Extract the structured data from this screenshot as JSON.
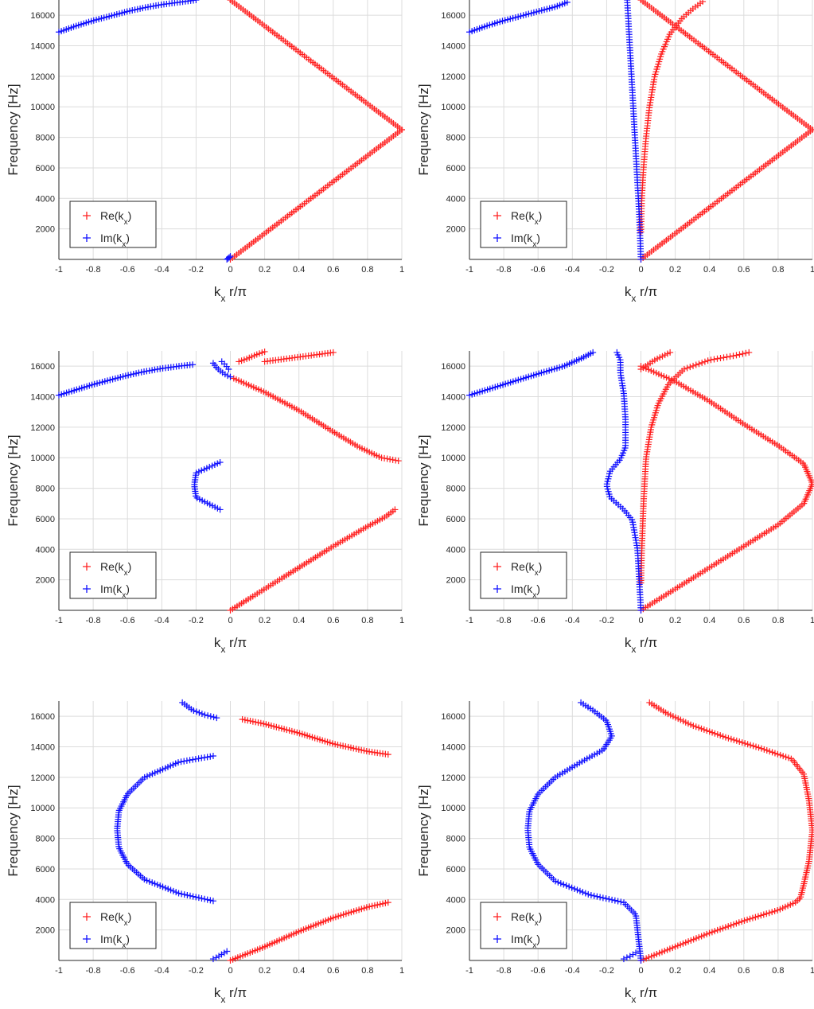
{
  "chart_data": [
    {
      "type": "scatter",
      "panel": "top-left",
      "xlabel": "k_x r/π",
      "ylabel": "Frequency [Hz]",
      "xlim": [
        -1,
        1
      ],
      "ylim": [
        0,
        17000
      ],
      "xticks": [
        "-1",
        "-0.8",
        "-0.6",
        "-0.4",
        "-0.2",
        "0",
        "0.2",
        "0.4",
        "0.6",
        "0.8",
        "1"
      ],
      "yticks": [
        "2000",
        "4000",
        "6000",
        "8000",
        "10000",
        "12000",
        "14000",
        "16000"
      ],
      "grid": true,
      "legend": "bottom-left",
      "marker": "+",
      "series": [
        {
          "name": "Re(k_x)",
          "color": "#ff2020",
          "branches": [
            {
              "x": [
                0.0,
                0.5,
                1.0
              ],
              "y": [
                0,
                4250,
                8500
              ]
            },
            {
              "x": [
                1.0,
                0.5,
                0.0
              ],
              "y": [
                8500,
                12750,
                17000
              ]
            }
          ]
        },
        {
          "name": "Im(k_x)",
          "color": "#1010ff",
          "branches": [
            {
              "x": [
                -1.0,
                -0.9,
                -0.8,
                -0.7,
                -0.6,
                -0.5,
                -0.4,
                -0.3,
                -0.2
              ],
              "y": [
                14900,
                15300,
                15650,
                15950,
                16250,
                16500,
                16700,
                16850,
                17000
              ]
            },
            {
              "x": [
                -0.02,
                0.0
              ],
              "y": [
                0,
                200
              ]
            }
          ]
        }
      ]
    },
    {
      "type": "scatter",
      "panel": "top-right",
      "xlabel": "k_x r/π",
      "ylabel": "Frequency [Hz]",
      "xlim": [
        -1,
        1
      ],
      "ylim": [
        0,
        17000
      ],
      "xticks": [
        "-1",
        "-0.8",
        "-0.6",
        "-0.4",
        "-0.2",
        "0",
        "0.2",
        "0.4",
        "0.6",
        "0.8",
        "1"
      ],
      "yticks": [
        "2000",
        "4000",
        "6000",
        "8000",
        "10000",
        "12000",
        "14000",
        "16000"
      ],
      "grid": true,
      "legend": "bottom-left",
      "marker": "+",
      "series": [
        {
          "name": "Re(k_x)",
          "color": "#ff2020",
          "branches": [
            {
              "x": [
                0.0,
                0.5,
                1.0
              ],
              "y": [
                0,
                4250,
                8500
              ]
            },
            {
              "x": [
                1.0,
                0.5,
                0.0
              ],
              "y": [
                8500,
                12750,
                17000
              ]
            },
            {
              "x": [
                0.0,
                0.005,
                0.015,
                0.03,
                0.05,
                0.08,
                0.12,
                0.17,
                0.24,
                0.3,
                0.36
              ],
              "y": [
                1800,
                4000,
                6000,
                8000,
                10000,
                12000,
                13500,
                14800,
                15800,
                16400,
                16900
              ]
            }
          ]
        },
        {
          "name": "Im(k_x)",
          "color": "#1010ff",
          "branches": [
            {
              "x": [
                -1.0,
                -0.9,
                -0.8,
                -0.7,
                -0.6,
                -0.5,
                -0.43
              ],
              "y": [
                14900,
                15300,
                15650,
                15950,
                16250,
                16550,
                16850
              ]
            },
            {
              "x": [
                -0.08,
                -0.07,
                -0.06,
                -0.05,
                -0.04,
                -0.03,
                -0.02,
                -0.01,
                0.0
              ],
              "y": [
                17000,
                15000,
                13000,
                11000,
                9000,
                7000,
                5000,
                3000,
                0
              ]
            }
          ]
        }
      ]
    },
    {
      "type": "scatter",
      "panel": "middle-left",
      "xlabel": "k_x r/π",
      "ylabel": "Frequency [Hz]",
      "xlim": [
        -1,
        1
      ],
      "ylim": [
        0,
        17000
      ],
      "xticks": [
        "-1",
        "-0.8",
        "-0.6",
        "-0.4",
        "-0.2",
        "0",
        "0.2",
        "0.4",
        "0.6",
        "0.8",
        "1"
      ],
      "yticks": [
        "2000",
        "4000",
        "6000",
        "8000",
        "10000",
        "12000",
        "14000",
        "16000"
      ],
      "grid": true,
      "legend": "bottom-left",
      "marker": "+",
      "series": [
        {
          "name": "Re(k_x)",
          "color": "#ff2020",
          "branches": [
            {
              "x": [
                0.0,
                0.2,
                0.4,
                0.6,
                0.8,
                0.9,
                0.96
              ],
              "y": [
                0,
                1400,
                2800,
                4200,
                5500,
                6100,
                6600
              ]
            },
            {
              "x": [
                0.02,
                0.2,
                0.4,
                0.6,
                0.75,
                0.88,
                0.98
              ],
              "y": [
                15200,
                14300,
                13100,
                11700,
                10700,
                10000,
                9800
              ]
            },
            {
              "x": [
                0.05,
                0.1,
                0.15,
                0.2
              ],
              "y": [
                16300,
                16500,
                16750,
                16950
              ]
            },
            {
              "x": [
                0.2,
                0.3,
                0.4,
                0.5,
                0.6
              ],
              "y": [
                16300,
                16450,
                16600,
                16750,
                16900
              ]
            }
          ]
        },
        {
          "name": "Im(k_x)",
          "color": "#1010ff",
          "branches": [
            {
              "x": [
                -1.0,
                -0.8,
                -0.6,
                -0.5,
                -0.4,
                -0.3,
                -0.22
              ],
              "y": [
                14100,
                14800,
                15400,
                15650,
                15850,
                16000,
                16100
              ]
            },
            {
              "x": [
                -0.06,
                -0.2,
                -0.21,
                -0.2,
                -0.06
              ],
              "y": [
                6600,
                7400,
                8200,
                9000,
                9700
              ]
            },
            {
              "x": [
                -0.1,
                -0.08,
                -0.05,
                -0.02,
                0.0
              ],
              "y": [
                16200,
                15900,
                15600,
                15400,
                15300
              ]
            },
            {
              "x": [
                -0.05,
                -0.03,
                -0.01
              ],
              "y": [
                16300,
                16100,
                15800
              ]
            }
          ]
        }
      ]
    },
    {
      "type": "scatter",
      "panel": "middle-right",
      "xlabel": "k_x r/π",
      "ylabel": "Frequency [Hz]",
      "xlim": [
        -1,
        1
      ],
      "ylim": [
        0,
        17000
      ],
      "xticks": [
        "-1",
        "-0.8",
        "-0.6",
        "-0.4",
        "-0.2",
        "0",
        "0.2",
        "0.4",
        "0.6",
        "0.8",
        "1"
      ],
      "yticks": [
        "2000",
        "4000",
        "6000",
        "8000",
        "10000",
        "12000",
        "14000",
        "16000"
      ],
      "grid": true,
      "legend": "bottom-left",
      "marker": "+",
      "series": [
        {
          "name": "Re(k_x)",
          "color": "#ff2020",
          "branches": [
            {
              "x": [
                0.0,
                0.2,
                0.4,
                0.6,
                0.8,
                0.95,
                1.0,
                0.95,
                0.8,
                0.6,
                0.4,
                0.2,
                0.0
              ],
              "y": [
                0,
                1400,
                2800,
                4200,
                5600,
                7000,
                8300,
                9600,
                10800,
                12200,
                13700,
                15000,
                16000
              ]
            },
            {
              "x": [
                0.0,
                0.005,
                0.015,
                0.03,
                0.06,
                0.1,
                0.16,
                0.25,
                0.4,
                0.55,
                0.63
              ],
              "y": [
                1800,
                4000,
                7000,
                10000,
                12000,
                13500,
                14800,
                15800,
                16400,
                16700,
                16900
              ]
            },
            {
              "x": [
                0.0,
                0.08,
                0.17
              ],
              "y": [
                15800,
                16400,
                16900
              ]
            }
          ]
        },
        {
          "name": "Im(k_x)",
          "color": "#1010ff",
          "branches": [
            {
              "x": [
                -1.0,
                -0.8,
                -0.6,
                -0.45,
                -0.35,
                -0.28
              ],
              "y": [
                14100,
                14800,
                15500,
                16000,
                16500,
                16900
              ]
            },
            {
              "x": [
                0.0,
                -0.01,
                -0.02,
                -0.05,
                -0.1,
                -0.18,
                -0.2,
                -0.18,
                -0.12,
                -0.09,
                -0.09,
                -0.1,
                -0.12,
                -0.12,
                -0.14
              ],
              "y": [
                0,
                2000,
                4000,
                5900,
                6600,
                7400,
                8200,
                9100,
                9900,
                10700,
                12500,
                14200,
                15600,
                16400,
                16900
              ]
            }
          ]
        }
      ]
    },
    {
      "type": "scatter",
      "panel": "bottom-left",
      "xlabel": "k_x r/π",
      "ylabel": "Frequency [Hz]",
      "xlim": [
        -1,
        1
      ],
      "ylim": [
        0,
        17000
      ],
      "xticks": [
        "-1",
        "-0.8",
        "-0.6",
        "-0.4",
        "-0.2",
        "0",
        "0.2",
        "0.4",
        "0.6",
        "0.8",
        "1"
      ],
      "yticks": [
        "2000",
        "4000",
        "6000",
        "8000",
        "10000",
        "12000",
        "14000",
        "16000"
      ],
      "grid": true,
      "legend": "bottom-left",
      "marker": "+",
      "series": [
        {
          "name": "Re(k_x)",
          "color": "#ff2020",
          "branches": [
            {
              "x": [
                0.0,
                0.2,
                0.4,
                0.6,
                0.8,
                0.92
              ],
              "y": [
                0,
                900,
                1900,
                2800,
                3500,
                3800
              ]
            },
            {
              "x": [
                0.07,
                0.2,
                0.4,
                0.6,
                0.8,
                0.92
              ],
              "y": [
                15800,
                15500,
                14900,
                14200,
                13700,
                13500
              ]
            }
          ]
        },
        {
          "name": "Im(k_x)",
          "color": "#1010ff",
          "branches": [
            {
              "x": [
                -0.1,
                -0.3,
                -0.5,
                -0.6,
                -0.65,
                -0.66,
                -0.65,
                -0.6,
                -0.5,
                -0.3,
                -0.1
              ],
              "y": [
                3900,
                4400,
                5300,
                6300,
                7400,
                8600,
                9800,
                10900,
                12000,
                13000,
                13400
              ]
            },
            {
              "x": [
                -0.28,
                -0.22,
                -0.15,
                -0.08
              ],
              "y": [
                16900,
                16400,
                16100,
                15900
              ]
            },
            {
              "x": [
                -0.1,
                -0.08,
                -0.05,
                -0.02
              ],
              "y": [
                100,
                200,
                400,
                600
              ]
            }
          ]
        }
      ]
    },
    {
      "type": "scatter",
      "panel": "bottom-right",
      "xlabel": "k_x r/π",
      "ylabel": "Frequency [Hz]",
      "xlim": [
        -1,
        1
      ],
      "ylim": [
        0,
        17000
      ],
      "xticks": [
        "-1",
        "-0.8",
        "-0.6",
        "-0.4",
        "-0.2",
        "0",
        "0.2",
        "0.4",
        "0.6",
        "0.8",
        "1"
      ],
      "yticks": [
        "2000",
        "4000",
        "6000",
        "8000",
        "10000",
        "12000",
        "14000",
        "16000"
      ],
      "grid": true,
      "legend": "bottom-left",
      "marker": "+",
      "series": [
        {
          "name": "Re(k_x)",
          "color": "#ff2020",
          "branches": [
            {
              "x": [
                0.0,
                0.2,
                0.4,
                0.6,
                0.8,
                0.9,
                0.93,
                0.95,
                0.98,
                1.0,
                0.98,
                0.95,
                0.88,
                0.7,
                0.5,
                0.3,
                0.15,
                0.05
              ],
              "y": [
                0,
                900,
                1800,
                2600,
                3300,
                3800,
                4100,
                5000,
                6500,
                8500,
                10500,
                12200,
                13200,
                13900,
                14600,
                15400,
                16200,
                16900
              ]
            }
          ]
        },
        {
          "name": "Im(k_x)",
          "color": "#1010ff",
          "branches": [
            {
              "x": [
                0.0,
                -0.01,
                -0.03,
                -0.1,
                -0.3,
                -0.5,
                -0.6,
                -0.65,
                -0.66,
                -0.65,
                -0.6,
                -0.5,
                -0.35,
                -0.22,
                -0.17,
                -0.2,
                -0.28,
                -0.35
              ],
              "y": [
                0,
                1000,
                3000,
                3800,
                4300,
                5200,
                6300,
                7400,
                8600,
                9800,
                10900,
                12000,
                13000,
                13800,
                14700,
                15700,
                16400,
                16900
              ]
            },
            {
              "x": [
                -0.1,
                -0.06,
                -0.03
              ],
              "y": [
                100,
                300,
                500
              ]
            }
          ]
        }
      ]
    }
  ]
}
